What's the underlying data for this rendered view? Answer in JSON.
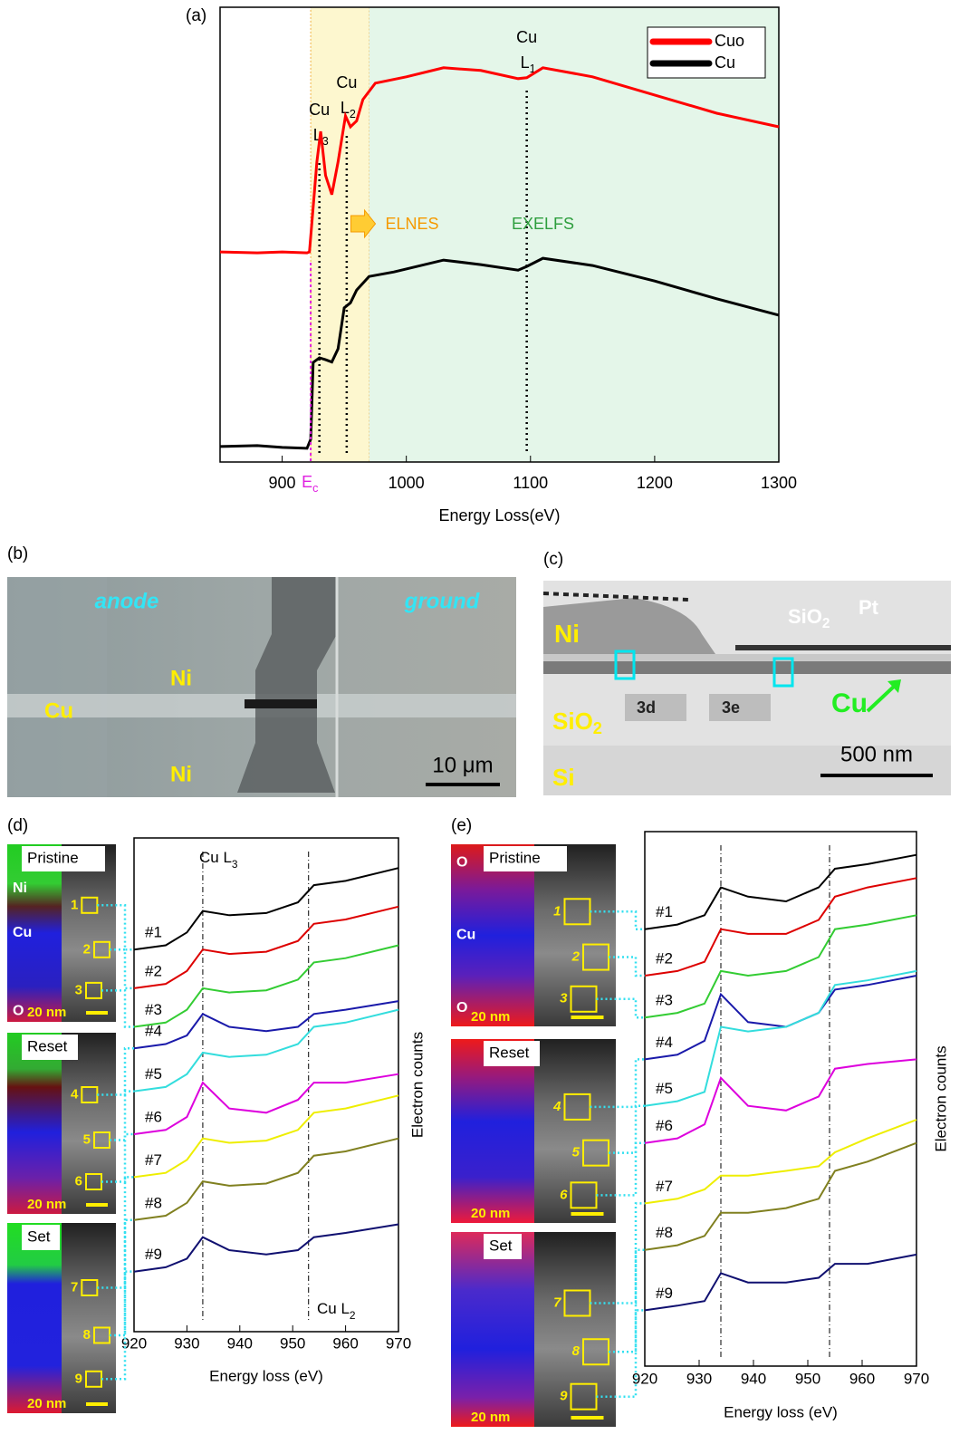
{
  "panel_labels": [
    "(a)",
    "(b)",
    "(c)",
    "(d)",
    "(e)"
  ],
  "chart_data": [
    {
      "type": "line",
      "x_label": "Energy Loss(eV)",
      "xlim": [
        850,
        1300
      ],
      "xticks": [
        900,
        1000,
        1100,
        1200,
        1300
      ],
      "ylim": [
        0,
        10
      ],
      "legend": "upper right",
      "regions": [
        {
          "name": "ELNES",
          "color": "#fdf7cf",
          "label_color": "#f59a00",
          "range": [
            923,
            970
          ]
        },
        {
          "name": "EXELFS",
          "color": "#e4f6e9",
          "label_color": "#2e9e3e",
          "range": [
            970,
            1300
          ]
        }
      ],
      "edge_onset": {
        "label": "E",
        "sub": "c",
        "x": 923
      },
      "edge_lines": [
        {
          "line1": "Cu",
          "line2": "L",
          "sub": "3",
          "x": 930
        },
        {
          "line1": "Cu",
          "line2": "L",
          "sub": "2",
          "x": 952
        },
        {
          "line1": "Cu",
          "line2": "L",
          "sub": "1",
          "x": 1097
        }
      ],
      "series": [
        {
          "name": "Cuo",
          "color": "#ff0000",
          "x": [
            850,
            880,
            900,
            920,
            922,
            925,
            928,
            931,
            935,
            940,
            945,
            951,
            955,
            960,
            965,
            975,
            1000,
            1030,
            1060,
            1090,
            1097,
            1110,
            1150,
            1200,
            1250,
            1300
          ],
          "values": [
            4.62,
            4.6,
            4.62,
            4.6,
            4.62,
            5.6,
            6.6,
            7.27,
            6.3,
            5.88,
            6.6,
            7.61,
            7.37,
            7.5,
            7.97,
            8.33,
            8.47,
            8.67,
            8.61,
            8.43,
            8.45,
            8.67,
            8.47,
            8.07,
            7.67,
            7.37
          ]
        },
        {
          "name": "Cu",
          "color": "#000000",
          "x": [
            850,
            880,
            900,
            920,
            923,
            925,
            930,
            935,
            940,
            945,
            950,
            955,
            960,
            970,
            990,
            1030,
            1060,
            1090,
            1097,
            1110,
            1150,
            1200,
            1250,
            1300
          ],
          "values": [
            0.34,
            0.36,
            0.32,
            0.3,
            0.5,
            2.19,
            2.29,
            2.25,
            2.2,
            2.49,
            3.39,
            3.5,
            3.78,
            4.08,
            4.18,
            4.44,
            4.34,
            4.22,
            4.3,
            4.48,
            4.32,
            3.98,
            3.59,
            3.23
          ]
        }
      ]
    },
    {
      "type": "line",
      "x_label": "Energy loss (eV)",
      "y_label": "Electron counts",
      "xlim": [
        920,
        970
      ],
      "xticks": [
        920,
        930,
        940,
        950,
        960,
        970
      ],
      "ylim": [
        0,
        11.5
      ],
      "edge_lines": [
        {
          "x": 933
        },
        {
          "x": 953
        }
      ],
      "annotations": [
        {
          "text": "Cu L",
          "sub": "3"
        },
        {
          "text": "Cu L",
          "sub": "2"
        }
      ],
      "x": [
        920,
        926,
        930,
        933,
        938,
        945,
        951,
        954,
        960,
        970
      ],
      "series": [
        {
          "name": "#1",
          "color": "#000000",
          "values": [
            8.9,
            9.0,
            9.3,
            9.8,
            9.7,
            9.75,
            10.0,
            10.4,
            10.5,
            10.8
          ]
        },
        {
          "name": "#2",
          "color": "#dd0000",
          "values": [
            8.0,
            8.1,
            8.4,
            8.9,
            8.8,
            8.85,
            9.1,
            9.5,
            9.6,
            9.9
          ]
        },
        {
          "name": "#3",
          "color": "#33cc33",
          "values": [
            7.1,
            7.2,
            7.5,
            8.0,
            7.9,
            7.95,
            8.2,
            8.6,
            8.7,
            9.0
          ]
        },
        {
          "name": "#4",
          "color": "#1a1aaa",
          "values": [
            6.6,
            6.7,
            6.9,
            7.4,
            7.1,
            7.0,
            7.1,
            7.4,
            7.5,
            7.7
          ]
        },
        {
          "name": "#5",
          "color": "#33dddd",
          "values": [
            5.6,
            5.7,
            6.0,
            6.5,
            6.4,
            6.45,
            6.7,
            7.1,
            7.2,
            7.5
          ]
        },
        {
          "name": "#6",
          "color": "#dd00dd",
          "values": [
            4.6,
            4.7,
            5.0,
            5.8,
            5.2,
            5.1,
            5.4,
            5.8,
            5.8,
            6.0
          ]
        },
        {
          "name": "#7",
          "color": "#eeee00",
          "values": [
            3.6,
            3.7,
            4.0,
            4.5,
            4.4,
            4.45,
            4.7,
            5.1,
            5.2,
            5.5
          ]
        },
        {
          "name": "#8",
          "color": "#808020",
          "values": [
            2.6,
            2.7,
            3.0,
            3.5,
            3.4,
            3.45,
            3.7,
            4.1,
            4.2,
            4.5
          ]
        },
        {
          "name": "#9",
          "color": "#101070",
          "values": [
            1.4,
            1.5,
            1.7,
            2.2,
            1.9,
            1.8,
            1.9,
            2.2,
            2.3,
            2.5
          ]
        }
      ]
    },
    {
      "type": "line",
      "x_label": "Energy loss (eV)",
      "y_label": "Electron counts",
      "xlim": [
        920,
        970
      ],
      "xticks": [
        920,
        930,
        940,
        950,
        960,
        970
      ],
      "ylim": [
        0,
        11.5
      ],
      "edge_lines": [
        {
          "x": 934
        },
        {
          "x": 954
        }
      ],
      "x": [
        920,
        926,
        931,
        934,
        939,
        946,
        952,
        955,
        961,
        970
      ],
      "series": [
        {
          "name": "#1",
          "color": "#000000",
          "values": [
            9.4,
            9.5,
            9.7,
            10.3,
            10.1,
            10.0,
            10.3,
            10.7,
            10.8,
            11.0
          ]
        },
        {
          "name": "#2",
          "color": "#dd0000",
          "values": [
            8.4,
            8.5,
            8.7,
            9.4,
            9.3,
            9.3,
            9.6,
            10.1,
            10.3,
            10.5
          ]
        },
        {
          "name": "#3",
          "color": "#33cc33",
          "values": [
            7.5,
            7.6,
            7.8,
            8.5,
            8.4,
            8.5,
            8.8,
            9.4,
            9.5,
            9.7
          ]
        },
        {
          "name": "#4",
          "color": "#1a1aaa",
          "values": [
            6.6,
            6.7,
            7.0,
            8.0,
            7.4,
            7.3,
            7.6,
            8.1,
            8.2,
            8.4
          ]
        },
        {
          "name": "#5",
          "color": "#33dddd",
          "values": [
            5.6,
            5.7,
            5.9,
            7.3,
            7.2,
            7.3,
            7.6,
            8.2,
            8.3,
            8.5
          ]
        },
        {
          "name": "#6",
          "color": "#dd00dd",
          "values": [
            4.8,
            4.9,
            5.2,
            6.2,
            5.6,
            5.5,
            5.8,
            6.4,
            6.5,
            6.6
          ]
        },
        {
          "name": "#7",
          "color": "#eeee00",
          "values": [
            3.5,
            3.6,
            3.8,
            4.1,
            4.1,
            4.2,
            4.3,
            4.6,
            4.9,
            5.3
          ]
        },
        {
          "name": "#8",
          "color": "#808020",
          "values": [
            2.5,
            2.6,
            2.8,
            3.3,
            3.3,
            3.4,
            3.6,
            4.2,
            4.4,
            4.8
          ]
        },
        {
          "name": "#9",
          "color": "#101070",
          "values": [
            1.2,
            1.3,
            1.4,
            2.0,
            1.8,
            1.8,
            1.9,
            2.2,
            2.2,
            2.4
          ]
        }
      ]
    }
  ],
  "micrograph_b": {
    "labels": [
      "anode",
      "ground",
      "Ni",
      "Cu",
      "Ni"
    ],
    "scale": "10 μm"
  },
  "micrograph_c": {
    "labels": [
      {
        "text": "Ni"
      },
      {
        "text": "SiO",
        "sub": "2"
      },
      {
        "text": "Pt"
      },
      {
        "text": "Cu"
      },
      {
        "text": "SiO",
        "sub": "2"
      },
      {
        "text": "Si"
      },
      {
        "text": "3d"
      },
      {
        "text": "3e"
      }
    ],
    "scale": "500 nm"
  },
  "maps": [
    {
      "groups": [
        {
          "state": "Pristine",
          "elements": [
            "Ni",
            "Cu",
            "O"
          ],
          "scale": "20 nm",
          "boxes": [
            "1",
            "2",
            "3"
          ]
        },
        {
          "state": "Reset",
          "scale": "20 nm",
          "boxes": [
            "4",
            "5",
            "6"
          ]
        },
        {
          "state": "Set",
          "scale": "20 nm",
          "boxes": [
            "7",
            "8",
            "9"
          ]
        }
      ]
    },
    {
      "groups": [
        {
          "state": "Pristine",
          "elements": [
            "O",
            "Cu",
            "O"
          ],
          "scale": "20 nm",
          "boxes": [
            "1",
            "2",
            "3"
          ]
        },
        {
          "state": "Reset",
          "scale": "20 nm",
          "boxes": [
            "4",
            "5",
            "6"
          ]
        },
        {
          "state": "Set",
          "scale": "20 nm",
          "boxes": [
            "7",
            "8",
            "9"
          ]
        }
      ]
    }
  ]
}
